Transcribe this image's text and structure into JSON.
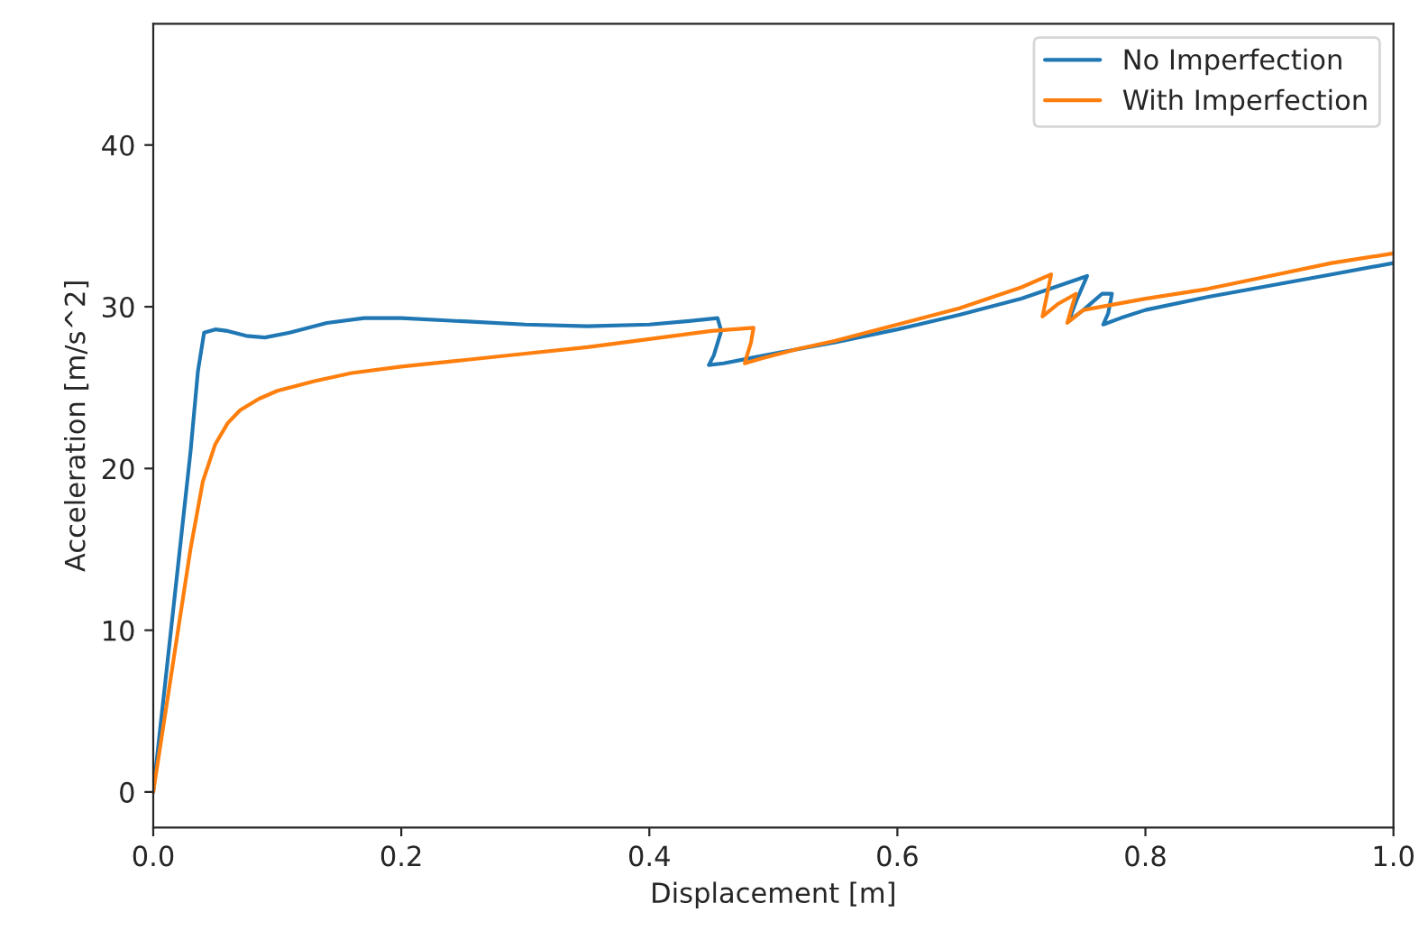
{
  "chart_data": {
    "type": "line",
    "xlabel": "Displacement [m]",
    "ylabel": "Acceleration [m/s^2]",
    "xlim": [
      0,
      1.0
    ],
    "ylim": [
      -2.2,
      47.5
    ],
    "xticks": [
      {
        "value": 0,
        "label": "0.0"
      },
      {
        "value": 0.2,
        "label": "0.2"
      },
      {
        "value": 0.4,
        "label": "0.4"
      },
      {
        "value": 0.6,
        "label": "0.6"
      },
      {
        "value": 0.8,
        "label": "0.8"
      },
      {
        "value": 1.0,
        "label": "1.0"
      }
    ],
    "yticks": [
      0,
      10,
      20,
      30,
      40
    ],
    "grid": false,
    "legend": "top right",
    "series": [
      {
        "name": "No Imperfection",
        "color": "#1f77b4",
        "x": [
          0,
          0.01,
          0.02,
          0.03,
          0.036,
          0.041,
          0.05,
          0.06,
          0.075,
          0.09,
          0.11,
          0.14,
          0.17,
          0.2,
          0.25,
          0.3,
          0.35,
          0.4,
          0.43,
          0.455,
          0.458,
          0.452,
          0.448,
          0.46,
          0.48,
          0.5,
          0.55,
          0.6,
          0.65,
          0.7,
          0.753,
          0.745,
          0.738,
          0.75,
          0.765,
          0.773,
          0.77,
          0.766,
          0.78,
          0.8,
          0.85,
          0.9,
          0.95,
          1.0
        ],
        "values": [
          0,
          7,
          14,
          21,
          26,
          28.4,
          28.6,
          28.5,
          28.2,
          28.1,
          28.4,
          29.0,
          29.3,
          29.3,
          29.1,
          28.9,
          28.8,
          28.9,
          29.1,
          29.3,
          28.5,
          27.0,
          26.4,
          26.5,
          26.8,
          27.1,
          27.8,
          28.6,
          29.5,
          30.5,
          31.9,
          30.5,
          29.1,
          29.8,
          30.8,
          30.8,
          29.6,
          28.9,
          29.3,
          29.8,
          30.6,
          31.3,
          32.0,
          32.7
        ]
      },
      {
        "name": "With Imperfection",
        "color": "#ff7f0e",
        "x": [
          0,
          0.01,
          0.02,
          0.03,
          0.04,
          0.05,
          0.06,
          0.07,
          0.085,
          0.1,
          0.13,
          0.16,
          0.2,
          0.25,
          0.3,
          0.35,
          0.4,
          0.45,
          0.484,
          0.482,
          0.478,
          0.477,
          0.49,
          0.52,
          0.55,
          0.6,
          0.65,
          0.7,
          0.724,
          0.72,
          0.717,
          0.73,
          0.744,
          0.74,
          0.737,
          0.75,
          0.8,
          0.85,
          0.9,
          0.95,
          1.0
        ],
        "values": [
          0,
          5,
          10,
          15,
          19.2,
          21.5,
          22.8,
          23.6,
          24.3,
          24.8,
          25.4,
          25.9,
          26.3,
          26.7,
          27.1,
          27.5,
          28.0,
          28.5,
          28.7,
          27.8,
          26.8,
          26.5,
          26.8,
          27.4,
          27.9,
          28.9,
          29.9,
          31.2,
          32.0,
          30.5,
          29.4,
          30.2,
          30.8,
          29.8,
          29.0,
          29.8,
          30.5,
          31.1,
          31.9,
          32.7,
          33.3
        ]
      }
    ]
  }
}
